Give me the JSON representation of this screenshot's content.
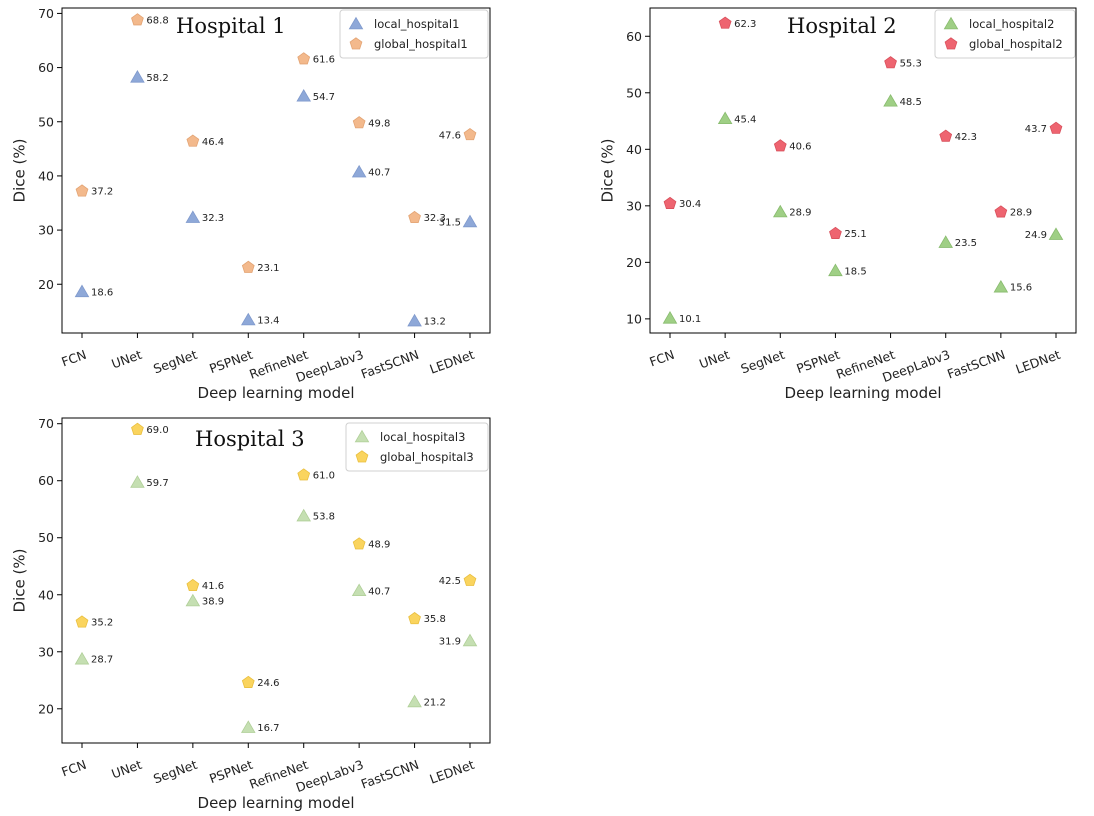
{
  "chart_data": [
    {
      "type": "scatter",
      "title": "Hospital 1",
      "xlabel": "Deep learning model",
      "ylabel": "Dice (%)",
      "categories": [
        "FCN",
        "UNet",
        "SegNet",
        "PSPNet",
        "RefineNet",
        "DeepLabv3",
        "FastSCNN",
        "LEDNet"
      ],
      "ylim": [
        11,
        71
      ],
      "yticks": [
        20,
        30,
        40,
        50,
        60,
        70
      ],
      "legend_position": "top-right",
      "series": [
        {
          "name": "local_hospital1",
          "marker": "triangle",
          "color": "#8ea8d8",
          "stroke": "#7f99cc",
          "values": [
            18.6,
            58.2,
            32.3,
            13.4,
            54.7,
            40.7,
            13.2,
            31.5
          ],
          "labels": [
            "18.6",
            "58.2",
            "32.3",
            "13.4",
            "54.7",
            "40.7",
            "13.2",
            "31.5"
          ]
        },
        {
          "name": "global_hospital1",
          "marker": "pentagon",
          "color": "#f3b98c",
          "stroke": "#e3a474",
          "values": [
            37.2,
            68.8,
            46.4,
            23.1,
            61.6,
            49.8,
            32.3,
            47.6
          ],
          "labels": [
            "37.2",
            "68.8",
            "46.4",
            "23.1",
            "61.6",
            "49.8",
            "32.3",
            "47.6"
          ]
        }
      ]
    },
    {
      "type": "scatter",
      "title": "Hospital 2",
      "xlabel": "Deep learning model",
      "ylabel": "Dice (%)",
      "categories": [
        "FCN",
        "UNet",
        "SegNet",
        "PSPNet",
        "RefineNet",
        "DeepLabv3",
        "FastSCNN",
        "LEDNet"
      ],
      "ylim": [
        7.5,
        65
      ],
      "yticks": [
        10,
        20,
        30,
        40,
        50,
        60
      ],
      "legend_position": "top-right",
      "series": [
        {
          "name": "local_hospital2",
          "marker": "triangle",
          "color": "#9fcf85",
          "stroke": "#88bb6e",
          "values": [
            10.1,
            45.4,
            28.9,
            18.5,
            48.5,
            23.5,
            15.6,
            24.9
          ],
          "labels": [
            "10.1",
            "45.4",
            "28.9",
            "18.5",
            "48.5",
            "23.5",
            "15.6",
            "24.9"
          ]
        },
        {
          "name": "global_hospital2",
          "marker": "pentagon",
          "color": "#ee6470",
          "stroke": "#d9505c",
          "values": [
            30.4,
            62.3,
            40.6,
            25.1,
            55.3,
            42.3,
            28.9,
            43.7
          ],
          "labels": [
            "30.4",
            "62.3",
            "40.6",
            "25.1",
            "55.3",
            "42.3",
            "28.9",
            "43.7"
          ]
        }
      ]
    },
    {
      "type": "scatter",
      "title": "Hospital 3",
      "xlabel": "Deep learning model",
      "ylabel": "Dice (%)",
      "categories": [
        "FCN",
        "UNet",
        "SegNet",
        "PSPNet",
        "RefineNet",
        "DeepLabv3",
        "FastSCNN",
        "LEDNet"
      ],
      "ylim": [
        14,
        71
      ],
      "yticks": [
        20,
        30,
        40,
        50,
        60,
        70
      ],
      "legend_position": "top-right",
      "series": [
        {
          "name": "local_hospital3",
          "marker": "triangle",
          "color": "#c5dfb2",
          "stroke": "#b0cf98",
          "values": [
            28.7,
            59.7,
            38.9,
            16.7,
            53.8,
            40.7,
            21.2,
            31.9
          ],
          "labels": [
            "28.7",
            "59.7",
            "38.9",
            "16.7",
            "53.8",
            "40.7",
            "21.2",
            "31.9"
          ]
        },
        {
          "name": "global_hospital3",
          "marker": "pentagon",
          "color": "#fad45e",
          "stroke": "#e9bf3f",
          "values": [
            35.2,
            69.0,
            41.6,
            24.6,
            61.0,
            48.9,
            35.8,
            42.5
          ],
          "labels": [
            "35.2",
            "69.0",
            "41.6",
            "24.6",
            "61.0",
            "48.9",
            "35.8",
            "42.5"
          ]
        }
      ]
    }
  ]
}
